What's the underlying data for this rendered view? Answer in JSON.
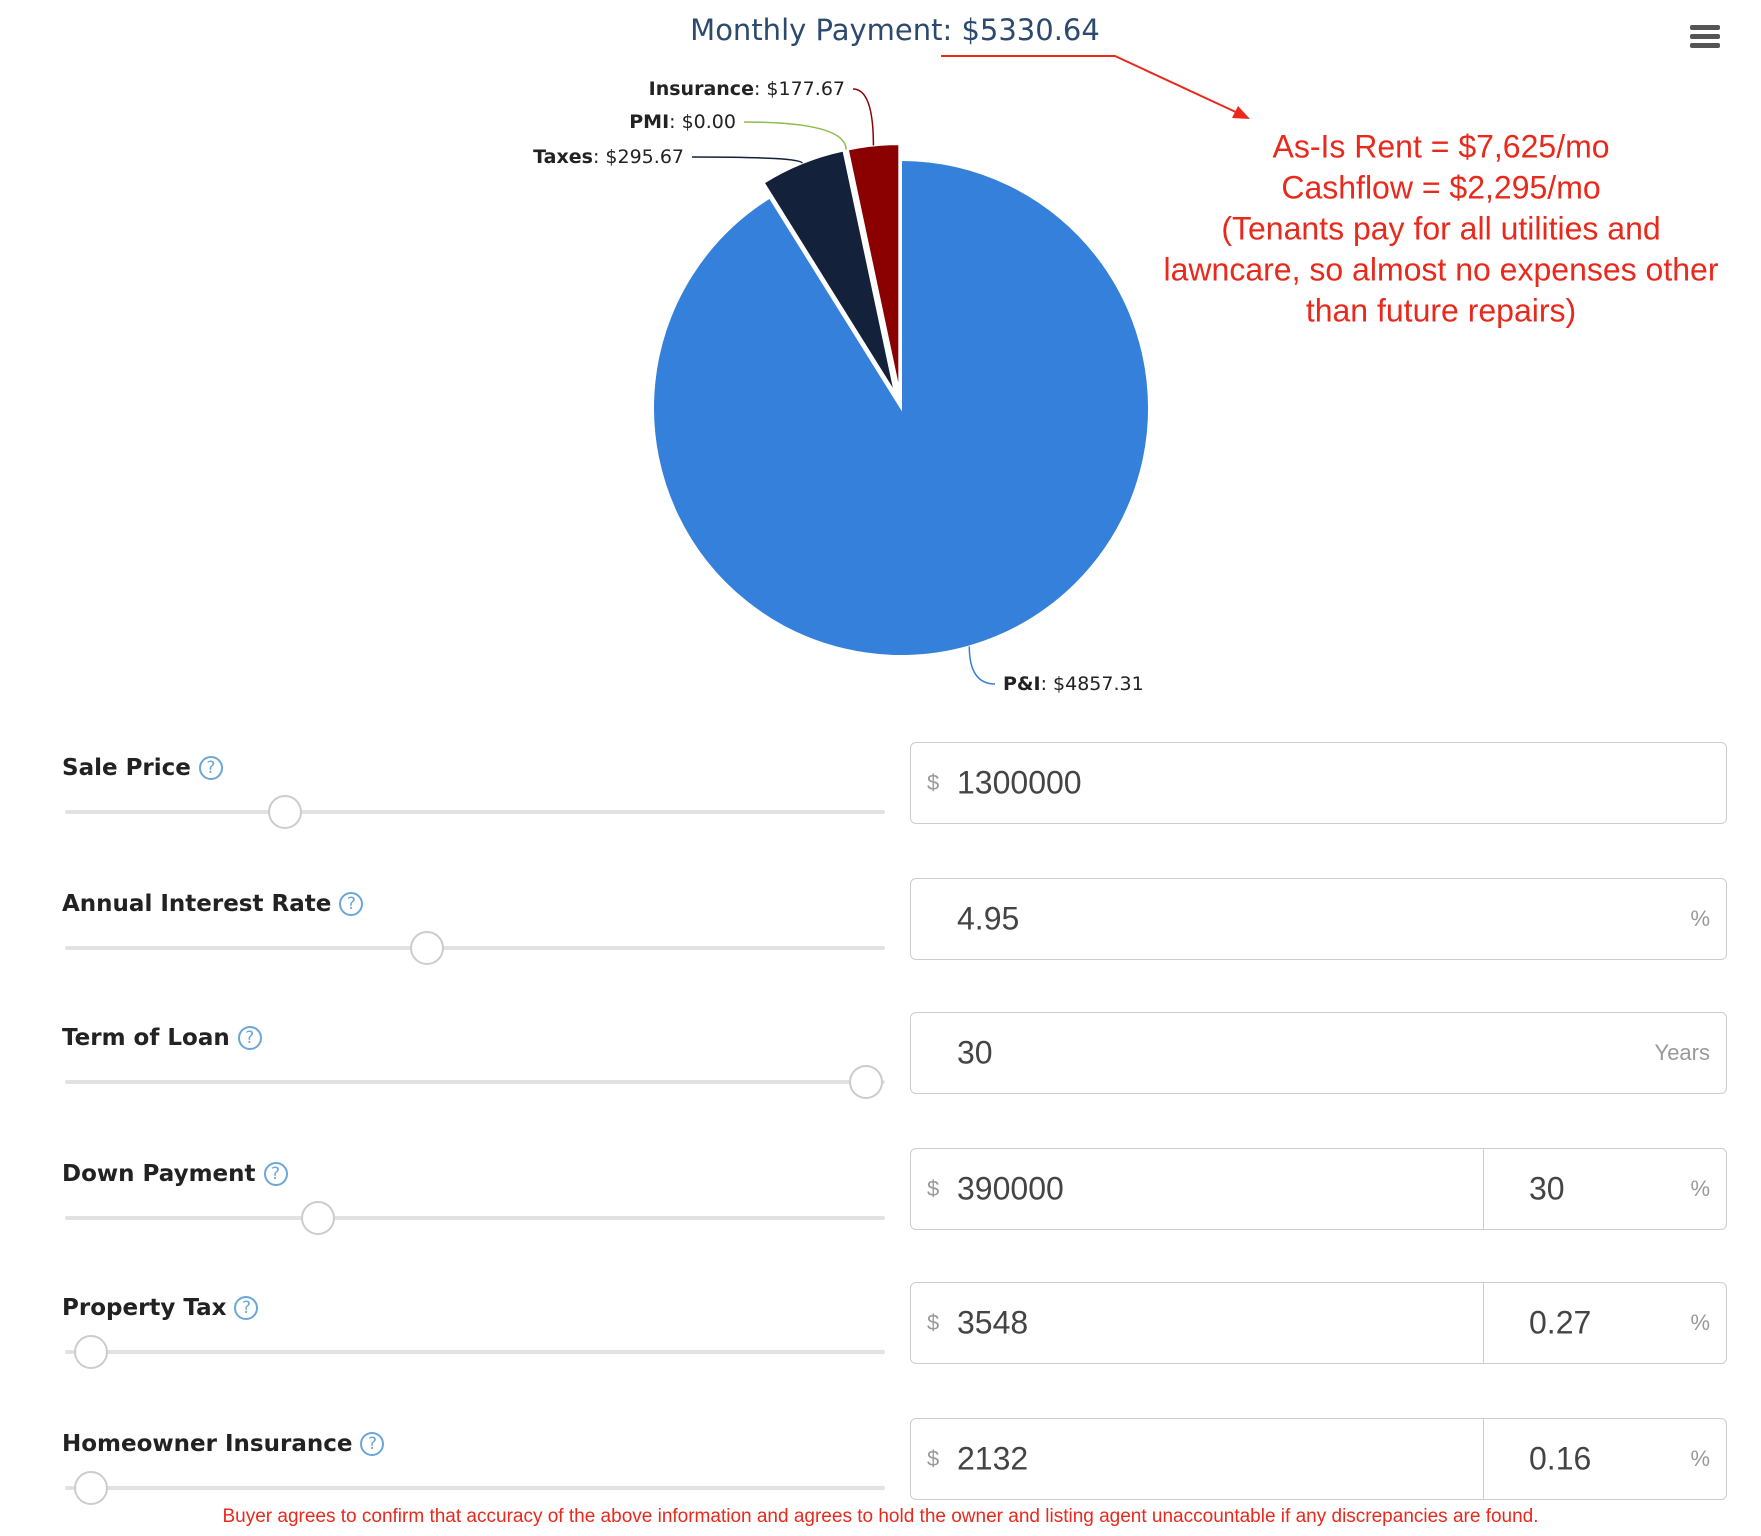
{
  "chart_data": {
    "type": "pie",
    "title": "Monthly Payment: $5330.64",
    "categories": [
      "P&I",
      "Taxes",
      "PMI",
      "Insurance"
    ],
    "values": [
      4857.31,
      295.67,
      0,
      177.67
    ],
    "value_labels": [
      "$4857.31",
      "$295.67",
      "$0.00",
      "$177.67"
    ],
    "label_separator": ": ",
    "colors": [
      "#3480da",
      "#13213a",
      "#8bbc4d",
      "#8b0000"
    ]
  },
  "annotation": {
    "lines": [
      "As-Is Rent = $7,625/mo",
      "Cashflow = $2,295/mo",
      "(Tenants pay for all utilities and",
      "lawncare, so almost no expenses other",
      "than future repairs)"
    ]
  },
  "help_icon": "?",
  "form": {
    "fields": [
      {
        "label": "Sale Price",
        "prefix": "$",
        "value": 1300000
      },
      {
        "label": "Annual Interest Rate",
        "value": 4.95,
        "suffix": "%"
      },
      {
        "label": "Term of Loan",
        "value": 30,
        "suffix": "Years"
      },
      {
        "label": "Down Payment",
        "prefix": "$",
        "value": 390000,
        "percent": 30,
        "suffix": "%"
      },
      {
        "label": "Property Tax",
        "prefix": "$",
        "value": 3548,
        "percent": 0.27,
        "suffix": "%"
      },
      {
        "label": "Homeowner Insurance",
        "prefix": "$",
        "value": 2132,
        "percent": 0.16,
        "suffix": "%"
      }
    ]
  },
  "disclaimer": "Buyer agrees to confirm that accuracy of the above information and agrees to hold the owner and listing agent unaccountable if any discrepancies are found."
}
